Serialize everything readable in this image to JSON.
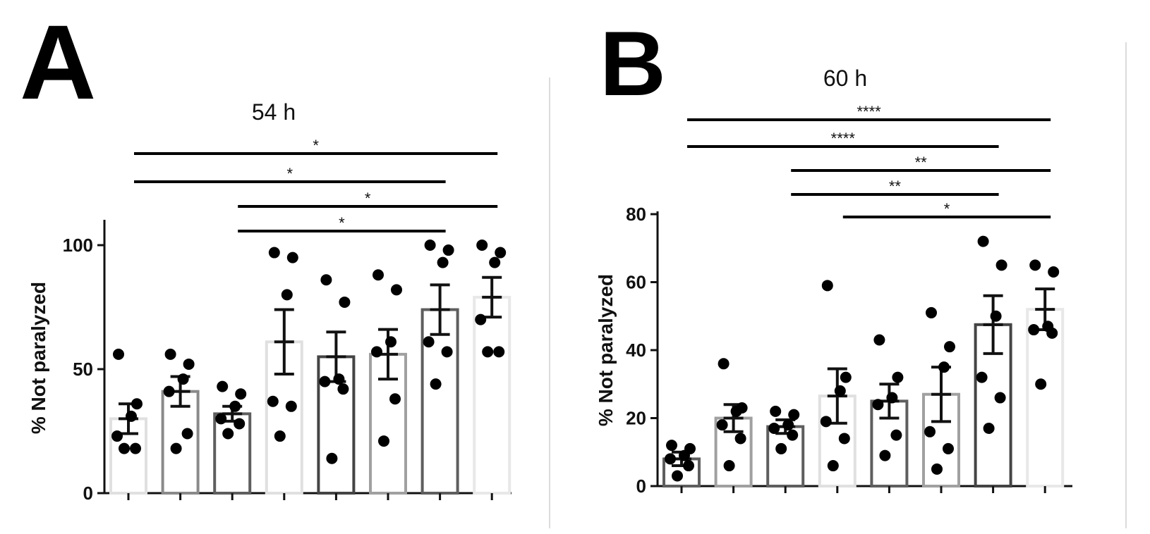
{
  "chart_data": [
    {
      "panel_letter": "A",
      "type": "bar",
      "title": "54 h",
      "ylabel": "% Not paralyzed",
      "xlabel": "",
      "ylim": [
        0,
        110
      ],
      "yticks": [
        0,
        50,
        100
      ],
      "grid": false,
      "categories": [
        "",
        "",
        "",
        "",
        "",
        "",
        "",
        ""
      ],
      "bar_edge_colors": [
        "#e0e0e0",
        "#8a8a8a",
        "#5e5e5e",
        "#e0e0e0",
        "#444444",
        "#a0a0a0",
        "#5e5e5e",
        "#e8e8e8"
      ],
      "values": [
        30,
        41,
        32,
        61,
        55,
        56,
        74,
        79
      ],
      "sem": [
        6,
        6,
        3,
        13,
        10,
        10,
        10,
        8
      ],
      "points": [
        [
          56,
          36,
          31,
          23,
          18,
          18
        ],
        [
          56,
          52,
          46,
          41,
          24,
          18
        ],
        [
          43,
          40,
          35,
          30,
          28,
          24
        ],
        [
          97,
          95,
          80,
          37,
          35,
          23
        ],
        [
          86,
          77,
          46,
          45,
          42,
          14
        ],
        [
          88,
          82,
          61,
          57,
          38,
          21
        ],
        [
          100,
          98,
          93,
          61,
          57,
          44
        ],
        [
          100,
          97,
          93,
          70,
          57,
          57
        ]
      ],
      "significance": [
        {
          "from": 0,
          "to": 7,
          "label": "*"
        },
        {
          "from": 0,
          "to": 6,
          "label": "*"
        },
        {
          "from": 2,
          "to": 7,
          "label": "*"
        },
        {
          "from": 2,
          "to": 6,
          "label": "*"
        }
      ]
    },
    {
      "panel_letter": "B",
      "type": "bar",
      "title": "60 h",
      "ylabel": "% Not paralyzed",
      "xlabel": "",
      "ylim": [
        0,
        80
      ],
      "yticks": [
        0,
        20,
        40,
        60,
        80
      ],
      "grid": false,
      "categories": [
        "",
        "",
        "",
        "",
        "",
        "",
        "",
        ""
      ],
      "bar_edge_colors": [
        "#5e5e5e",
        "#a0a0a0",
        "#5e5e5e",
        "#e0e0e0",
        "#5e5e5e",
        "#a0a0a0",
        "#444444",
        "#e8e8e8"
      ],
      "values": [
        8,
        20,
        17.5,
        26.5,
        25,
        27,
        47.5,
        52
      ],
      "sem": [
        2,
        4,
        2,
        8,
        5,
        8,
        8.5,
        6
      ],
      "points": [
        [
          12,
          11,
          9,
          8,
          6,
          3
        ],
        [
          36,
          23,
          22,
          18,
          14,
          6
        ],
        [
          22,
          21,
          18,
          17,
          15,
          11
        ],
        [
          59,
          32,
          28,
          19,
          14,
          6
        ],
        [
          43,
          32,
          26,
          24,
          15,
          9
        ],
        [
          51,
          41,
          35,
          16,
          11,
          5
        ],
        [
          72,
          65,
          50,
          32,
          26,
          17
        ],
        [
          65,
          63,
          47,
          46,
          45,
          30
        ]
      ],
      "significance": [
        {
          "from": 0,
          "to": 7,
          "label": "****"
        },
        {
          "from": 0,
          "to": 6,
          "label": "****"
        },
        {
          "from": 2,
          "to": 7,
          "label": "**"
        },
        {
          "from": 2,
          "to": 6,
          "label": "**"
        },
        {
          "from": 3,
          "to": 7,
          "label": "*"
        }
      ]
    }
  ]
}
